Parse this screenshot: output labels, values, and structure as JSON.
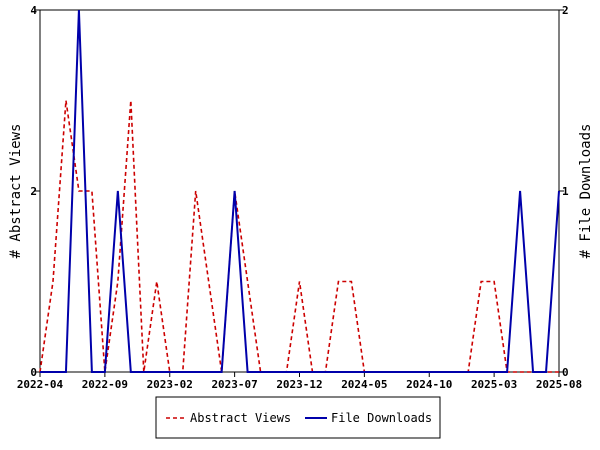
{
  "chart_data": {
    "type": "line",
    "ylabel_left": "# Abstract Views",
    "ylabel_right": "# File Downloads",
    "x_ticks": [
      "2022-04",
      "2022-09",
      "2023-02",
      "2023-07",
      "2023-12",
      "2024-05",
      "2024-10",
      "2025-03",
      "2025-08"
    ],
    "y_left_ticks": [
      "0",
      "2",
      "4"
    ],
    "y_right_ticks": [
      "0",
      "1",
      "2"
    ],
    "y_left_range": [
      0,
      4
    ],
    "y_right_range": [
      0,
      2
    ],
    "x_range": [
      "2022-04",
      "2025-08"
    ],
    "legend_position": "bottom-center",
    "grid": false,
    "series": [
      {
        "name": "Abstract Views",
        "axis": "left",
        "color": "#cc0000",
        "style": "dashed",
        "points": [
          [
            "2022-04",
            0
          ],
          [
            "2022-05",
            1
          ],
          [
            "2022-06",
            3
          ],
          [
            "2022-07",
            2
          ],
          [
            "2022-08",
            2
          ],
          [
            "2022-09",
            0
          ],
          [
            "2022-10",
            1
          ],
          [
            "2022-11",
            3
          ],
          [
            "2022-12",
            0
          ],
          [
            "2023-01",
            1
          ],
          [
            "2023-02",
            0
          ],
          [
            "2023-03",
            0
          ],
          [
            "2023-04",
            2
          ],
          [
            "2023-05",
            1
          ],
          [
            "2023-06",
            0
          ],
          [
            "2023-07",
            2
          ],
          [
            "2023-08",
            1
          ],
          [
            "2023-09",
            0
          ],
          [
            "2023-10",
            0
          ],
          [
            "2023-11",
            0
          ],
          [
            "2023-12",
            1
          ],
          [
            "2024-01",
            0
          ],
          [
            "2024-02",
            0
          ],
          [
            "2024-03",
            1
          ],
          [
            "2024-04",
            1
          ],
          [
            "2024-05",
            0
          ],
          [
            "2024-06",
            0
          ],
          [
            "2024-07",
            0
          ],
          [
            "2024-08",
            0
          ],
          [
            "2024-09",
            0
          ],
          [
            "2024-10",
            0
          ],
          [
            "2024-11",
            0
          ],
          [
            "2024-12",
            0
          ],
          [
            "2025-01",
            0
          ],
          [
            "2025-02",
            1
          ],
          [
            "2025-03",
            1
          ],
          [
            "2025-04",
            0
          ],
          [
            "2025-05",
            0
          ],
          [
            "2025-06",
            0
          ],
          [
            "2025-07",
            0
          ],
          [
            "2025-08",
            0
          ]
        ]
      },
      {
        "name": "File Downloads",
        "axis": "right",
        "color": "#0000aa",
        "style": "solid",
        "points": [
          [
            "2022-04",
            0
          ],
          [
            "2022-05",
            0
          ],
          [
            "2022-06",
            0
          ],
          [
            "2022-07",
            2
          ],
          [
            "2022-08",
            0
          ],
          [
            "2022-09",
            0
          ],
          [
            "2022-10",
            1
          ],
          [
            "2022-11",
            0
          ],
          [
            "2022-12",
            0
          ],
          [
            "2023-01",
            0
          ],
          [
            "2023-02",
            0
          ],
          [
            "2023-03",
            0
          ],
          [
            "2023-04",
            0
          ],
          [
            "2023-05",
            0
          ],
          [
            "2023-06",
            0
          ],
          [
            "2023-07",
            1
          ],
          [
            "2023-08",
            0
          ],
          [
            "2023-09",
            0
          ],
          [
            "2023-10",
            0
          ],
          [
            "2023-11",
            0
          ],
          [
            "2023-12",
            0
          ],
          [
            "2024-01",
            0
          ],
          [
            "2024-02",
            0
          ],
          [
            "2024-03",
            0
          ],
          [
            "2024-04",
            0
          ],
          [
            "2024-05",
            0
          ],
          [
            "2024-06",
            0
          ],
          [
            "2024-07",
            0
          ],
          [
            "2024-08",
            0
          ],
          [
            "2024-09",
            0
          ],
          [
            "2024-10",
            0
          ],
          [
            "2024-11",
            0
          ],
          [
            "2024-12",
            0
          ],
          [
            "2025-01",
            0
          ],
          [
            "2025-02",
            0
          ],
          [
            "2025-03",
            0
          ],
          [
            "2025-04",
            0
          ],
          [
            "2025-05",
            1
          ],
          [
            "2025-06",
            0
          ],
          [
            "2025-07",
            0
          ],
          [
            "2025-08",
            1
          ]
        ]
      }
    ]
  }
}
